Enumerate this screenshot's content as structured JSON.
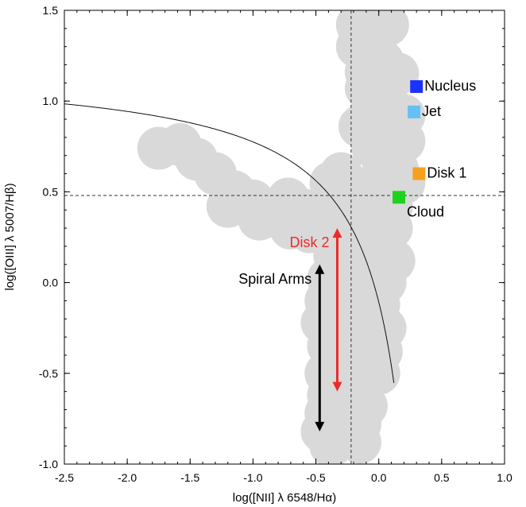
{
  "chart_data": {
    "type": "scatter",
    "title": "",
    "xlabel": "log([NII] λ 6548/Hα)",
    "ylabel": "log([OIII] λ 5007/Hβ)",
    "xlim": [
      -2.5,
      1.0
    ],
    "ylim": [
      -1.0,
      1.5
    ],
    "xticks": [
      -2.5,
      -2.0,
      -1.5,
      -1.0,
      -0.5,
      0.0,
      0.5,
      1.0
    ],
    "yticks": [
      -1.0,
      -0.5,
      0.0,
      0.5,
      1.0,
      1.5
    ],
    "xtick_labels": [
      "-2.5",
      "-2.0",
      "-1.5",
      "-1.0",
      "-0.5",
      "0.0",
      "0.5",
      "1.0"
    ],
    "ytick_labels": [
      "-1.0",
      "-0.5",
      "0.0",
      "0.5",
      "1.0",
      "1.5"
    ],
    "grid": false,
    "reference_lines": {
      "vertical_x": -0.22,
      "horizontal_y": 0.48
    },
    "demarcation_curve": {
      "form": "y = 0.61/(x - 0.47) + 1.19",
      "a": 0.61,
      "x0": 0.47,
      "b": 1.19,
      "x_range": [
        -2.5,
        0.12
      ]
    },
    "cloud_color": "#d9d9d9",
    "cloud_points": [
      [
        -0.17,
        1.42
      ],
      [
        -0.05,
        1.42
      ],
      [
        0.07,
        1.42
      ],
      [
        -0.08,
        1.34
      ],
      [
        -0.17,
        1.3
      ],
      [
        -0.05,
        1.3
      ],
      [
        0.03,
        1.22
      ],
      [
        -0.1,
        1.16
      ],
      [
        0.05,
        1.12
      ],
      [
        -0.1,
        1.07
      ],
      [
        0.15,
        1.15
      ],
      [
        -0.05,
        0.97
      ],
      [
        0.08,
        0.98
      ],
      [
        -0.15,
        0.86
      ],
      [
        -0.03,
        0.87
      ],
      [
        0.1,
        0.85
      ],
      [
        0.2,
        0.92
      ],
      [
        -0.05,
        0.75
      ],
      [
        0.1,
        0.72
      ],
      [
        0.2,
        0.78
      ],
      [
        -0.3,
        0.6
      ],
      [
        0.03,
        0.6
      ],
      [
        0.15,
        0.62
      ],
      [
        -0.38,
        0.55
      ],
      [
        0.05,
        0.52
      ],
      [
        0.2,
        0.55
      ],
      [
        -1.75,
        0.74
      ],
      [
        -1.58,
        0.76
      ],
      [
        -1.45,
        0.68
      ],
      [
        -1.3,
        0.6
      ],
      [
        -1.15,
        0.5
      ],
      [
        -1.0,
        0.45
      ],
      [
        -0.85,
        0.4
      ],
      [
        -0.72,
        0.46
      ],
      [
        -0.6,
        0.4
      ],
      [
        -0.48,
        0.35
      ],
      [
        -1.2,
        0.42
      ],
      [
        -0.95,
        0.35
      ],
      [
        -0.7,
        0.3
      ],
      [
        -0.55,
        0.28
      ],
      [
        -0.35,
        0.42
      ],
      [
        -0.25,
        0.47
      ],
      [
        -0.12,
        0.5
      ],
      [
        0.0,
        0.45
      ],
      [
        0.1,
        0.42
      ],
      [
        -0.3,
        0.25
      ],
      [
        -0.15,
        0.3
      ],
      [
        0.0,
        0.28
      ],
      [
        0.1,
        0.3
      ],
      [
        -0.35,
        0.15
      ],
      [
        -0.2,
        0.12
      ],
      [
        0.0,
        0.15
      ],
      [
        0.12,
        0.12
      ],
      [
        -0.4,
        0.02
      ],
      [
        -0.25,
        0.0
      ],
      [
        -0.08,
        0.02
      ],
      [
        0.05,
        0.0
      ],
      [
        -0.42,
        -0.1
      ],
      [
        -0.3,
        -0.12
      ],
      [
        -0.15,
        -0.15
      ],
      [
        0.0,
        -0.12
      ],
      [
        -0.45,
        -0.22
      ],
      [
        -0.3,
        -0.25
      ],
      [
        -0.12,
        -0.28
      ],
      [
        0.05,
        -0.25
      ],
      [
        -0.4,
        -0.35
      ],
      [
        -0.25,
        -0.38
      ],
      [
        -0.1,
        -0.4
      ],
      [
        0.02,
        -0.38
      ],
      [
        -0.42,
        -0.5
      ],
      [
        -0.28,
        -0.52
      ],
      [
        -0.12,
        -0.55
      ],
      [
        0.0,
        -0.5
      ],
      [
        -0.4,
        -0.62
      ],
      [
        -0.25,
        -0.65
      ],
      [
        -0.1,
        -0.68
      ],
      [
        -0.42,
        -0.72
      ],
      [
        -0.3,
        -0.75
      ],
      [
        -0.15,
        -0.78
      ],
      [
        -0.45,
        -0.82
      ],
      [
        -0.3,
        -0.85
      ],
      [
        -0.15,
        -0.88
      ],
      [
        -0.38,
        -0.9
      ]
    ],
    "markers": [
      {
        "name": "Nucleus",
        "x": 0.3,
        "y": 1.08,
        "color": "#1a32ff"
      },
      {
        "name": "Jet",
        "x": 0.28,
        "y": 0.94,
        "color": "#66c0f5"
      },
      {
        "name": "Disk 1",
        "x": 0.32,
        "y": 0.6,
        "color": "#f7a020"
      },
      {
        "name": "Cloud",
        "x": 0.16,
        "y": 0.47,
        "color": "#1ed21e"
      }
    ],
    "ranges": [
      {
        "name": "Disk 2",
        "x": -0.33,
        "y_top": 0.3,
        "y_bottom": -0.6,
        "color": "#ee2a2a"
      },
      {
        "name": "Spiral Arms",
        "x": -0.47,
        "y_top": 0.1,
        "y_bottom": -0.82,
        "color": "#000000"
      }
    ]
  }
}
